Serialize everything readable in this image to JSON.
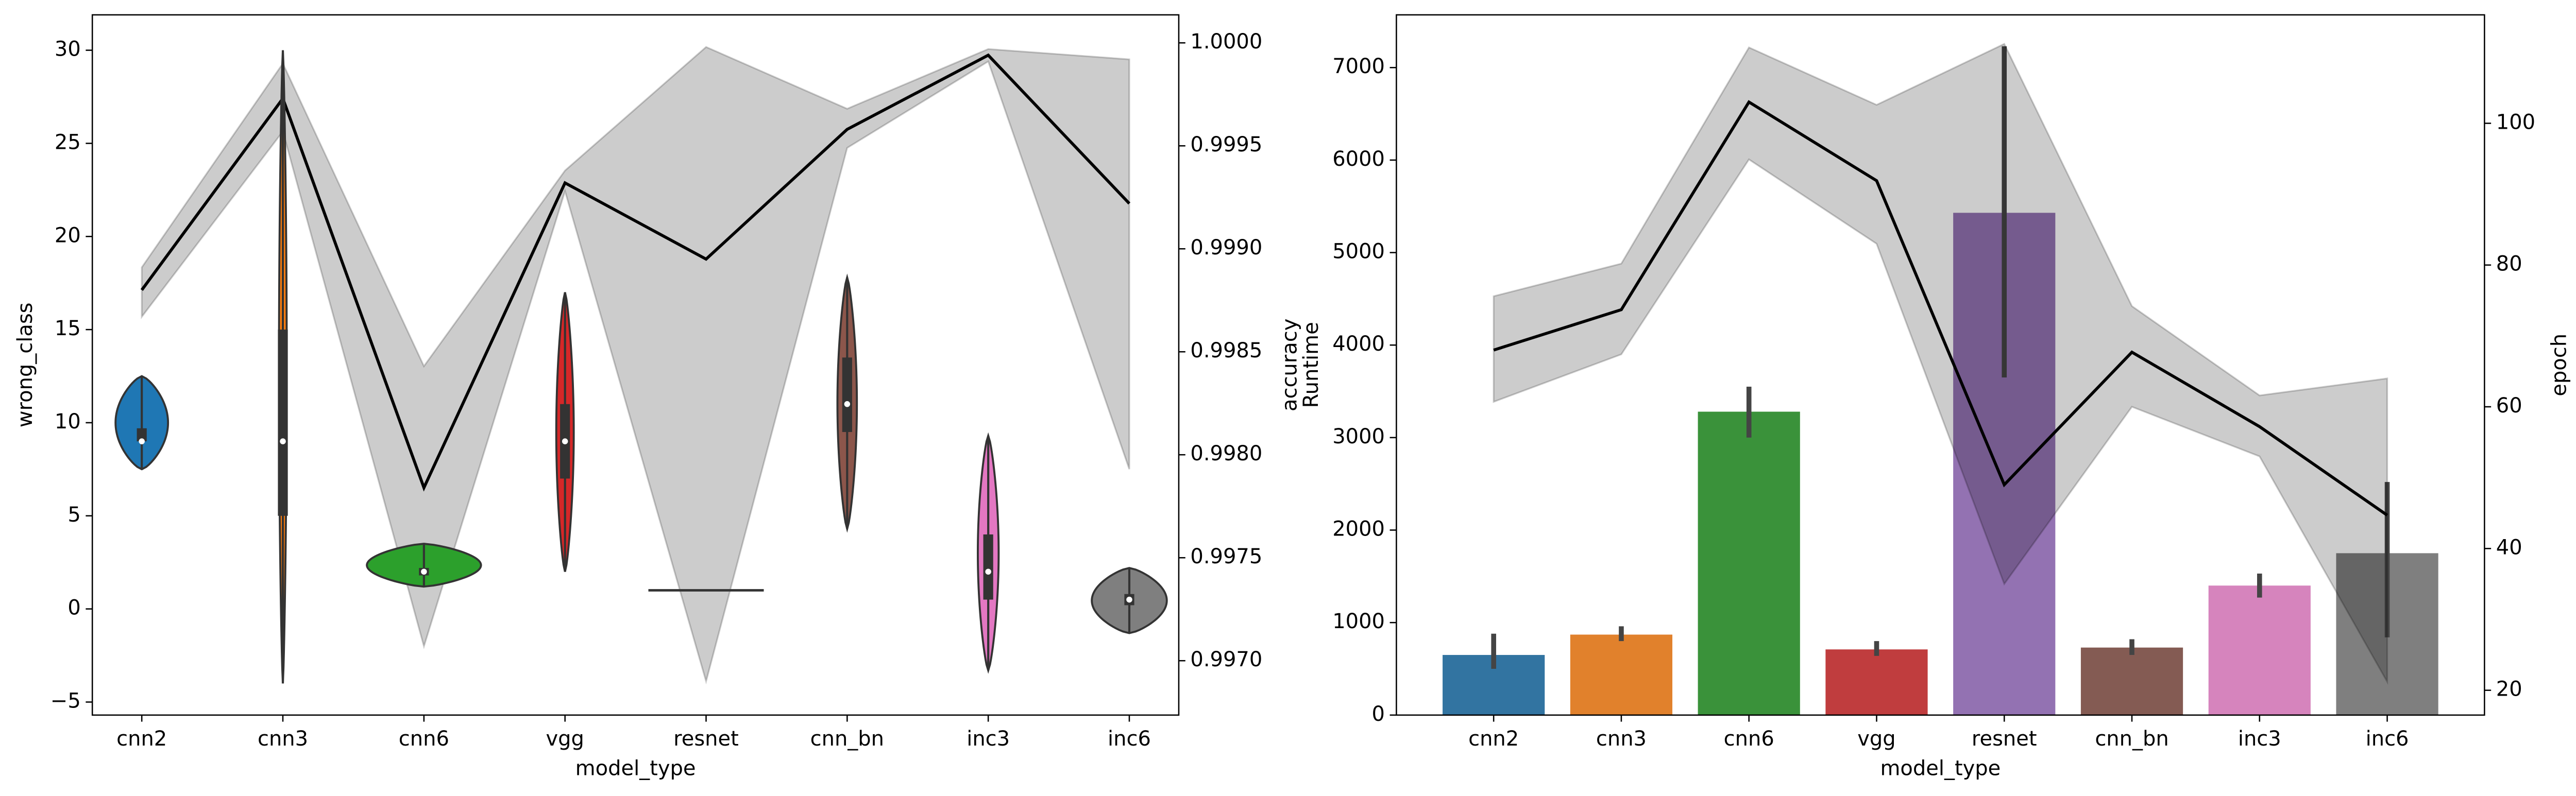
{
  "chart_data": [
    {
      "type": "violin",
      "xlabel": "model_type",
      "ylabel": "wrong_class",
      "y2label": "accuracy",
      "categories": [
        "cnn2",
        "cnn3",
        "cnn6",
        "vgg",
        "resnet",
        "cnn_bn",
        "inc3",
        "inc6"
      ],
      "colors": [
        "#1f77b4",
        "#ff7f0e",
        "#2ca02c",
        "#d62728",
        "#9467bd",
        "#8c564b",
        "#e377c2",
        "#7f7f7f"
      ],
      "stats": {
        "min": [
          7.5,
          -4,
          1.2,
          2,
          1,
          4.3,
          -3.3,
          -1.3
        ],
        "q1": [
          9,
          5,
          1.8,
          7,
          1,
          9.5,
          0.5,
          0.2
        ],
        "median": [
          9,
          9,
          2,
          9,
          1,
          11,
          2,
          0.5
        ],
        "q3": [
          9.7,
          15,
          2.2,
          11,
          1,
          13.5,
          4,
          0.8
        ],
        "max": [
          12.5,
          30,
          3.5,
          17,
          1,
          17.8,
          9.3,
          2.2
        ]
      },
      "ylim": [
        -5.7,
        31.9
      ],
      "yticks": [
        {
          "value": -5,
          "label": "−5"
        },
        0,
        5,
        10,
        15,
        20,
        25,
        30
      ],
      "y2lim": [
        0.996736,
        1.000136
      ],
      "y2ticks": [
        {
          "value": 0.997,
          "label": "0.9970"
        },
        0.9975,
        {
          "value": 0.998,
          "label": "0.9980"
        },
        0.9985,
        {
          "value": 0.999,
          "label": "0.9990"
        },
        0.9995,
        {
          "value": 1,
          "label": "1.0000"
        }
      ],
      "line": {
        "axis": "y2",
        "color": "#000000",
        "values": [
          0.9988,
          0.99973,
          0.99784,
          0.99932,
          0.99895,
          0.99958,
          0.99994,
          0.99922
        ],
        "upper": [
          0.99891,
          0.9999,
          0.99843,
          0.99938,
          0.99998,
          0.99968,
          0.99997,
          0.99992
        ],
        "lower": [
          0.99867,
          0.99957,
          0.99707,
          0.99928,
          0.9969,
          0.99949,
          0.99991,
          0.99793
        ]
      }
    },
    {
      "type": "bar",
      "xlabel": "model_type",
      "ylabel": "Runtime",
      "y2label": "epoch",
      "categories": [
        "cnn2",
        "cnn3",
        "cnn6",
        "vgg",
        "resnet",
        "cnn_bn",
        "inc3",
        "inc6"
      ],
      "colors": [
        "#3274a1",
        "#e1812c",
        "#3a923a",
        "#c03d3e",
        "#9372b2",
        "#845b53",
        "#d684bd",
        "#7f7f7f"
      ],
      "values": [
        650,
        870,
        3280,
        710,
        5430,
        730,
        1400,
        1750
      ],
      "err_low": [
        500,
        800,
        3000,
        640,
        3650,
        650,
        1270,
        840
      ],
      "err_high": [
        880,
        960,
        3550,
        800,
        7230,
        820,
        1530,
        2520
      ],
      "ylim": [
        0,
        7570
      ],
      "yticks": [
        0,
        1000,
        2000,
        3000,
        4000,
        5000,
        6000,
        7000
      ],
      "y2lim": [
        16.5,
        115.3
      ],
      "y2ticks": [
        20,
        40,
        60,
        80,
        100
      ],
      "line": {
        "axis": "y2",
        "color": "#000000",
        "values": [
          68,
          73.7,
          103,
          91.9,
          49,
          67.7,
          57.2,
          44.7
        ],
        "upper": [
          75.6,
          80.2,
          110.7,
          102.6,
          111.2,
          74.2,
          61.6,
          64
        ],
        "lower": [
          60.7,
          67.4,
          94.9,
          83,
          35,
          60,
          53,
          21.2
        ]
      }
    }
  ]
}
